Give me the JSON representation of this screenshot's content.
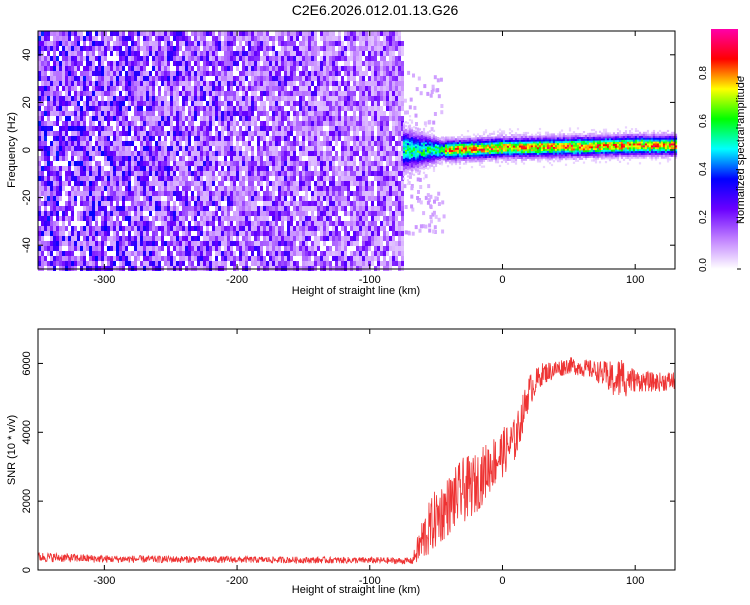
{
  "title": "C2E6.2026.012.01.13.G26",
  "chart_data": [
    {
      "type": "heatmap",
      "title": "C2E6.2026.012.01.13.G26",
      "xlabel": "Height of straight line (km)",
      "ylabel": "Frequency (Hz)",
      "xlim": [
        -350,
        130
      ],
      "ylim": [
        -50,
        50
      ],
      "xticks": [
        -300,
        -200,
        -100,
        0,
        100
      ],
      "yticks": [
        -40,
        -20,
        0,
        20,
        40
      ],
      "noise_region_x": [
        -350,
        -75
      ],
      "signal_band": {
        "x_start": -75,
        "x_end": 130,
        "center_frequency_hz": [
          {
            "x": -75,
            "f": 0
          },
          {
            "x": -40,
            "f": 0
          },
          {
            "x": 0,
            "f": 1
          },
          {
            "x": 60,
            "f": 1.5
          },
          {
            "x": 100,
            "f": 2
          },
          {
            "x": 130,
            "f": 2
          }
        ]
      },
      "colorbar": {
        "label": "Normalized spectral amplitude",
        "range": [
          0,
          1
        ],
        "ticks": [
          0.0,
          0.2,
          0.4,
          0.6,
          0.8
        ],
        "tick_labels": [
          "0.0",
          "0.2",
          "0.4",
          "0.6",
          "0.8"
        ],
        "colors": [
          "#ffffff",
          "#c080ff",
          "#6a00ff",
          "#0000ff",
          "#00ffff",
          "#00ff00",
          "#ffff00",
          "#ff0000",
          "#ff00aa"
        ]
      }
    },
    {
      "type": "line",
      "xlabel": "Height of straight line (km)",
      "ylabel": "SNR (10 * v/v)",
      "xlim": [
        -350,
        130
      ],
      "ylim": [
        0,
        7000
      ],
      "xticks": [
        -300,
        -200,
        -100,
        0,
        100
      ],
      "yticks": [
        0,
        2000,
        4000,
        6000
      ],
      "series": [
        {
          "name": "SNR",
          "color": "#ee3333",
          "envelope": [
            {
              "x": -350,
              "mean": 380,
              "spread": 180
            },
            {
              "x": -300,
              "mean": 320,
              "spread": 140
            },
            {
              "x": -200,
              "mean": 300,
              "spread": 120
            },
            {
              "x": -100,
              "mean": 280,
              "spread": 120
            },
            {
              "x": -68,
              "mean": 260,
              "spread": 120
            },
            {
              "x": -60,
              "mean": 900,
              "spread": 900
            },
            {
              "x": -50,
              "mean": 1500,
              "spread": 1100
            },
            {
              "x": -40,
              "mean": 1900,
              "spread": 1100
            },
            {
              "x": -30,
              "mean": 2300,
              "spread": 1200
            },
            {
              "x": -20,
              "mean": 2500,
              "spread": 1100
            },
            {
              "x": -10,
              "mean": 3000,
              "spread": 1000
            },
            {
              "x": 0,
              "mean": 3400,
              "spread": 900
            },
            {
              "x": 10,
              "mean": 3800,
              "spread": 800
            },
            {
              "x": 20,
              "mean": 5200,
              "spread": 600
            },
            {
              "x": 30,
              "mean": 5700,
              "spread": 400
            },
            {
              "x": 50,
              "mean": 5950,
              "spread": 300
            },
            {
              "x": 70,
              "mean": 5800,
              "spread": 350
            },
            {
              "x": 85,
              "mean": 5500,
              "spread": 700
            },
            {
              "x": 90,
              "mean": 5600,
              "spread": 800
            },
            {
              "x": 100,
              "mean": 5500,
              "spread": 400
            },
            {
              "x": 115,
              "mean": 5450,
              "spread": 350
            },
            {
              "x": 130,
              "mean": 5500,
              "spread": 350
            }
          ]
        }
      ]
    }
  ]
}
